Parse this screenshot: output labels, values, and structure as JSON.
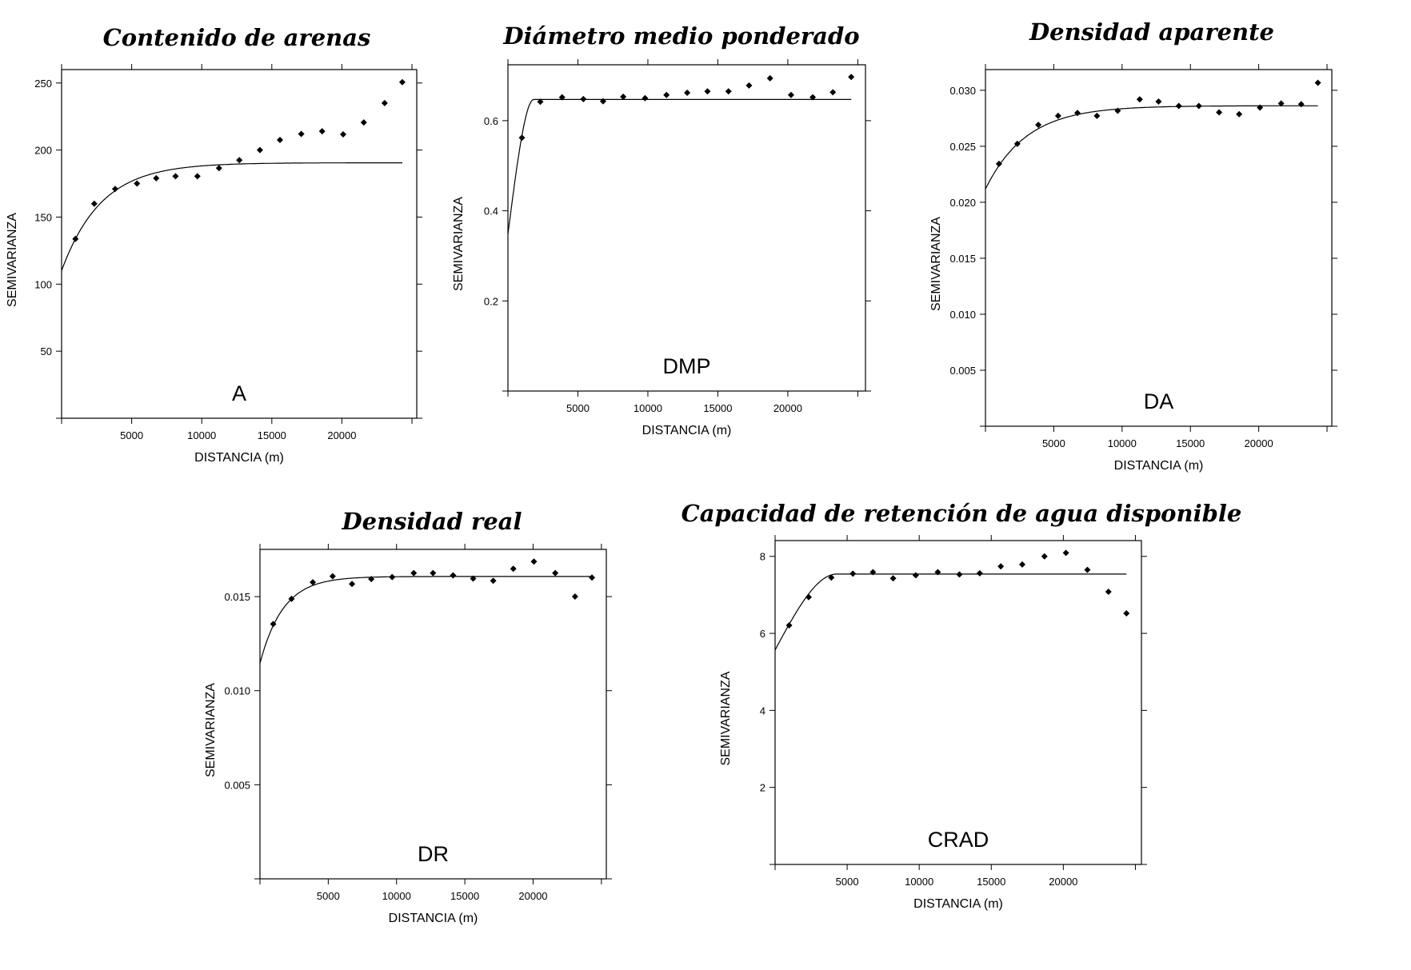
{
  "chart_data": [
    {
      "type": "scatter",
      "title": "Contenido de arenas",
      "panel_label": "A",
      "xlabel": "DISTANCIA (m)",
      "ylabel": "SEMIVARIANZA",
      "xlim": [
        0,
        25340
      ],
      "ylim": [
        0,
        260
      ],
      "xticks": [
        5000,
        10000,
        15000,
        20000
      ],
      "xtick_labels": [
        "5000",
        "10000",
        "15000",
        "20000"
      ],
      "yticks": [
        50,
        100,
        150,
        200,
        250
      ],
      "ytick_labels": [
        "50",
        "100",
        "150",
        "200",
        "250"
      ],
      "points": [
        [
          990,
          133.7
        ],
        [
          2330,
          160
        ],
        [
          3820,
          171
        ],
        [
          5380,
          175
        ],
        [
          6750,
          179
        ],
        [
          8130,
          180.5
        ],
        [
          9690,
          180.5
        ],
        [
          11230,
          186.5
        ],
        [
          12680,
          192.5
        ],
        [
          14150,
          200
        ],
        [
          15580,
          207.5
        ],
        [
          17100,
          212
        ],
        [
          18590,
          214
        ],
        [
          20090,
          211.7
        ],
        [
          21560,
          220.6
        ],
        [
          23050,
          235
        ],
        [
          24310,
          250.6
        ]
      ],
      "model": {
        "type": "exponential",
        "nugget": 110,
        "sill": 190.5,
        "range": 2830,
        "max_distance": 24310
      }
    },
    {
      "type": "scatter",
      "title": "Diámetro medio ponderado",
      "panel_label": "DMP",
      "xlabel": "DISTANCIA (m)",
      "ylabel": "SEMIVARIANZA",
      "xlim": [
        0,
        25550
      ],
      "ylim": [
        0,
        0.724
      ],
      "xticks": [
        5000,
        10000,
        15000,
        20000
      ],
      "xtick_labels": [
        "5000",
        "10000",
        "15000",
        "20000"
      ],
      "yticks": [
        0.2,
        0.4,
        0.6
      ],
      "ytick_labels": [
        "0.2",
        "0.4",
        "0.6"
      ],
      "points": [
        [
          1000,
          0.562
        ],
        [
          2315,
          0.642
        ],
        [
          3870,
          0.652
        ],
        [
          5390,
          0.648
        ],
        [
          6800,
          0.643
        ],
        [
          8240,
          0.653
        ],
        [
          9800,
          0.65
        ],
        [
          11330,
          0.657
        ],
        [
          12810,
          0.662
        ],
        [
          14260,
          0.665
        ],
        [
          15760,
          0.665
        ],
        [
          17230,
          0.678
        ],
        [
          18730,
          0.694
        ],
        [
          20230,
          0.657
        ],
        [
          21780,
          0.652
        ],
        [
          23220,
          0.663
        ],
        [
          24530,
          0.697
        ]
      ],
      "model": {
        "type": "spherical",
        "nugget": 0.348,
        "sill": 0.647,
        "range": 1850,
        "max_distance": 24530
      }
    },
    {
      "type": "scatter",
      "title": "Densidad aparente",
      "panel_label": "DA",
      "xlabel": "DISTANCIA (m)",
      "ylabel": "SEMIVARIANZA",
      "xlim": [
        0,
        25350
      ],
      "ylim": [
        0,
        0.03185
      ],
      "xticks": [
        5000,
        10000,
        15000,
        20000
      ],
      "xtick_labels": [
        "5000",
        "10000",
        "15000",
        "20000"
      ],
      "yticks": [
        0.005,
        0.01,
        0.015,
        0.02,
        0.025,
        0.03
      ],
      "ytick_labels": [
        "0.005",
        "0.010",
        "0.015",
        "0.020",
        "0.025",
        "0.030"
      ],
      "points": [
        [
          990,
          0.02343
        ],
        [
          2330,
          0.02522
        ],
        [
          3870,
          0.02691
        ],
        [
          5320,
          0.02772
        ],
        [
          6730,
          0.02798
        ],
        [
          8160,
          0.02772
        ],
        [
          9680,
          0.02817
        ],
        [
          11290,
          0.02919
        ],
        [
          12670,
          0.02899
        ],
        [
          14150,
          0.0286
        ],
        [
          15620,
          0.0286
        ],
        [
          17100,
          0.02803
        ],
        [
          18570,
          0.02787
        ],
        [
          20090,
          0.02846
        ],
        [
          21640,
          0.02882
        ],
        [
          23110,
          0.02876
        ],
        [
          24330,
          0.03067
        ]
      ],
      "model": {
        "type": "exponential",
        "nugget": 0.02118,
        "sill": 0.02862,
        "range": 3000,
        "max_distance": 24330
      }
    },
    {
      "type": "scatter",
      "title": "Densidad real",
      "panel_label": "DR",
      "xlabel": "DISTANCIA (m)",
      "ylabel": "SEMIVARIANZA",
      "xlim": [
        0,
        25360
      ],
      "ylim": [
        0,
        0.01751
      ],
      "xticks": [
        5000,
        10000,
        15000,
        20000
      ],
      "xtick_labels": [
        "5000",
        "10000",
        "15000",
        "20000"
      ],
      "yticks": [
        0.005,
        0.01,
        0.015
      ],
      "ytick_labels": [
        "0.005",
        "0.010",
        "0.015"
      ],
      "points": [
        [
          970,
          0.01354
        ],
        [
          2310,
          0.01488
        ],
        [
          3870,
          0.01576
        ],
        [
          5320,
          0.01608
        ],
        [
          6740,
          0.01567
        ],
        [
          8150,
          0.01593
        ],
        [
          9680,
          0.01604
        ],
        [
          11260,
          0.01625
        ],
        [
          12670,
          0.01625
        ],
        [
          14140,
          0.01613
        ],
        [
          15610,
          0.01596
        ],
        [
          17080,
          0.01584
        ],
        [
          18550,
          0.01648
        ],
        [
          20060,
          0.01686
        ],
        [
          21620,
          0.01625
        ],
        [
          23070,
          0.015
        ],
        [
          24310,
          0.01601
        ]
      ],
      "model": {
        "type": "exponential",
        "nugget": 0.01146,
        "sill": 0.01607,
        "range": 1710,
        "max_distance": 24310
      }
    },
    {
      "type": "scatter",
      "title": "Capacidad de retención de agua disponible",
      "panel_label": "CRAD",
      "xlabel": "DISTANCIA (m)",
      "ylabel": "SEMIVARIANZA",
      "xlim": [
        0,
        25420
      ],
      "ylim": [
        0,
        8.41
      ],
      "xticks": [
        5000,
        10000,
        15000,
        20000
      ],
      "xtick_labels": [
        "5000",
        "10000",
        "15000",
        "20000"
      ],
      "yticks": [
        2,
        4,
        6,
        8
      ],
      "ytick_labels": [
        "2",
        "4",
        "6",
        "8"
      ],
      "points": [
        [
          975,
          6.21
        ],
        [
          2330,
          6.94
        ],
        [
          3900,
          7.45
        ],
        [
          5400,
          7.55
        ],
        [
          6790,
          7.59
        ],
        [
          8190,
          7.43
        ],
        [
          9760,
          7.51
        ],
        [
          11290,
          7.59
        ],
        [
          12790,
          7.53
        ],
        [
          14200,
          7.56
        ],
        [
          15660,
          7.74
        ],
        [
          17150,
          7.79
        ],
        [
          18690,
          8.0
        ],
        [
          20180,
          8.09
        ],
        [
          21670,
          7.65
        ],
        [
          23130,
          7.08
        ],
        [
          24380,
          6.52
        ]
      ],
      "model": {
        "type": "spherical",
        "nugget": 5.57,
        "sill": 7.54,
        "range": 4260,
        "max_distance": 24380
      }
    }
  ]
}
